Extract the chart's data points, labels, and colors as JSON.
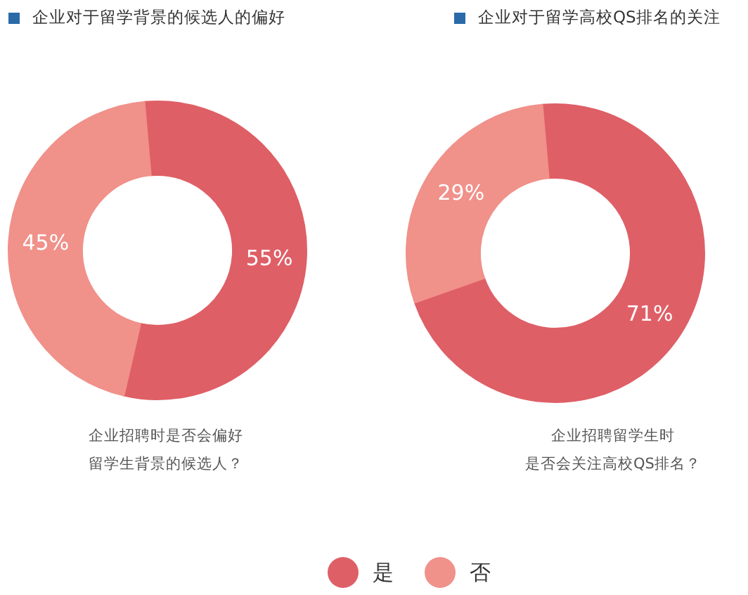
{
  "chart_data": [
    {
      "type": "donut",
      "title": "企业对于留学背景的候选人的偏好",
      "categories": [
        "是",
        "否"
      ],
      "values": [
        55,
        45
      ],
      "colors": [
        "#df5f67",
        "#f0918a"
      ],
      "value_labels": [
        "55%",
        "45%"
      ],
      "annotations": [
        "企业招聘时是否会偏好",
        "留学生背景的候选人？"
      ],
      "legend": "bottom"
    },
    {
      "type": "donut",
      "title": "企业对于留学高校QS排名的关注",
      "categories": [
        null,
        null
      ],
      "values": [
        71,
        29
      ],
      "colors": [
        "#df5f67",
        "#f0918a"
      ],
      "value_labels": [
        "71%",
        "29%"
      ],
      "annotations": [
        "企业招聘留学生时",
        "是否会关注高校QS排名？"
      ]
    }
  ]
}
